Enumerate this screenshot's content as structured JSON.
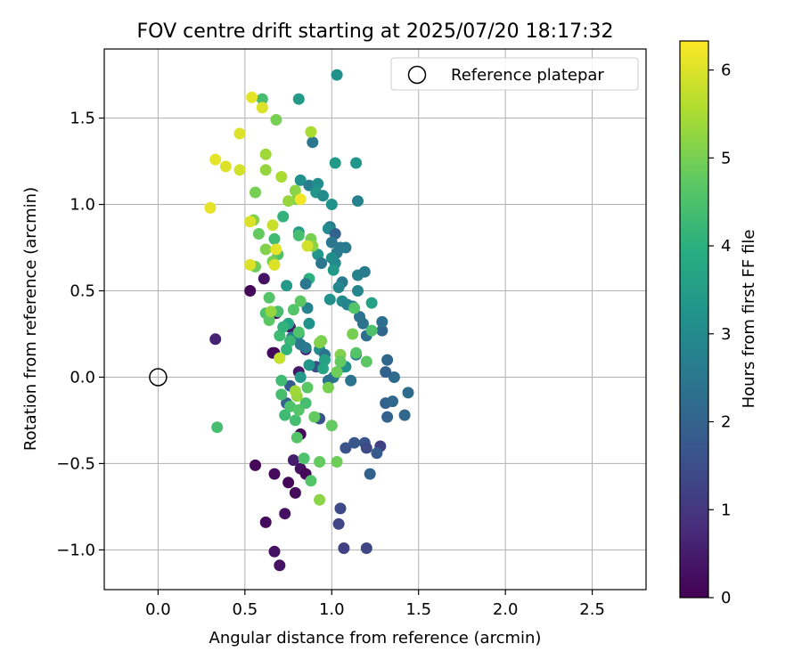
{
  "chart_data": {
    "type": "scatter",
    "title": "FOV centre drift starting at 2025/07/20 18:17:32",
    "xlabel": "Angular distance from reference (arcmin)",
    "ylabel": "Rotation from reference (arcmin)",
    "colorbar_label": "Hours from first FF file",
    "xlim": [
      -0.31,
      2.81
    ],
    "ylim": [
      -1.23,
      1.9
    ],
    "clim": [
      0,
      6.33
    ],
    "xticks": [
      0.0,
      0.5,
      1.0,
      1.5,
      2.0,
      2.5
    ],
    "xtick_labels": [
      "0.0",
      "0.5",
      "1.0",
      "1.5",
      "2.0",
      "2.5"
    ],
    "yticks": [
      -1.0,
      -0.5,
      0.0,
      0.5,
      1.0,
      1.5
    ],
    "ytick_labels": [
      "−1.0",
      "−0.5",
      "0.0",
      "0.5",
      "1.0",
      "1.5"
    ],
    "cticks": [
      0,
      1,
      2,
      3,
      4,
      5,
      6
    ],
    "ctick_labels": [
      "0",
      "1",
      "2",
      "3",
      "4",
      "5",
      "6"
    ],
    "grid": true,
    "colormap": "viridis",
    "legend": {
      "location": "top-right",
      "entries": [
        "Reference platepar"
      ]
    },
    "reference_point": {
      "x": 0.0,
      "y": 0.0
    },
    "points": [
      [
        0.33,
        0.22,
        0.6
      ],
      [
        0.53,
        0.5,
        0.1
      ],
      [
        0.61,
        0.57,
        0.3
      ],
      [
        0.68,
        0.37,
        0.2
      ],
      [
        0.66,
        0.14,
        0.3
      ],
      [
        0.67,
        0.14,
        0.1
      ],
      [
        0.76,
        0.29,
        0.4
      ],
      [
        0.85,
        0.16,
        0.5
      ],
      [
        0.81,
        0.03,
        0.4
      ],
      [
        0.82,
        -0.33,
        0.1
      ],
      [
        0.82,
        -0.53,
        0.3
      ],
      [
        0.85,
        -0.56,
        0.1
      ],
      [
        0.79,
        -0.67,
        0.2
      ],
      [
        0.75,
        -0.61,
        0.1
      ],
      [
        0.73,
        -0.79,
        0.3
      ],
      [
        0.62,
        -0.84,
        0.2
      ],
      [
        0.67,
        -1.01,
        0.3
      ],
      [
        0.7,
        -1.09,
        0.3
      ],
      [
        0.56,
        -0.51,
        0.1
      ],
      [
        0.67,
        -0.56,
        0.2
      ],
      [
        0.78,
        -0.48,
        0.5
      ],
      [
        1.05,
        -0.76,
        1.4
      ],
      [
        1.04,
        -0.85,
        1.3
      ],
      [
        1.07,
        -0.99,
        1.2
      ],
      [
        1.2,
        -0.99,
        1.3
      ],
      [
        1.08,
        -0.41,
        1.6
      ],
      [
        1.13,
        -0.38,
        1.7
      ],
      [
        1.19,
        -0.38,
        1.6
      ],
      [
        1.2,
        -0.41,
        1.4
      ],
      [
        1.28,
        -0.4,
        1.2
      ],
      [
        1.26,
        -0.44,
        1.8
      ],
      [
        1.22,
        -0.56,
        2.0
      ],
      [
        0.91,
        0.06,
        1.5
      ],
      [
        0.93,
        -0.24,
        1.6
      ],
      [
        0.76,
        -0.05,
        1.8
      ],
      [
        0.74,
        -0.15,
        2.0
      ],
      [
        1.32,
        -0.23,
        2.0
      ],
      [
        1.42,
        -0.22,
        2.1
      ],
      [
        1.31,
        -0.15,
        2.0
      ],
      [
        1.35,
        -0.14,
        2.1
      ],
      [
        1.44,
        -0.09,
        2.2
      ],
      [
        1.36,
        0.0,
        2.2
      ],
      [
        1.31,
        0.03,
        2.0
      ],
      [
        1.32,
        0.1,
        2.1
      ],
      [
        1.29,
        0.27,
        2.1
      ],
      [
        1.29,
        0.32,
        2.3
      ],
      [
        1.18,
        0.31,
        2.4
      ],
      [
        1.2,
        0.24,
        2.3
      ],
      [
        1.12,
        0.41,
        2.3
      ],
      [
        1.16,
        0.35,
        2.4
      ],
      [
        1.14,
        0.13,
        2.6
      ],
      [
        1.11,
        -0.02,
        2.4
      ],
      [
        1.07,
        0.06,
        2.7
      ],
      [
        1.01,
        0.0,
        2.6
      ],
      [
        0.98,
        -0.02,
        2.3
      ],
      [
        1.03,
        1.75,
        3.2
      ],
      [
        0.81,
        1.61,
        3.4
      ],
      [
        0.89,
        1.36,
        2.5
      ],
      [
        1.14,
        1.24,
        3.3
      ],
      [
        1.02,
        1.24,
        3.4
      ],
      [
        0.82,
        1.14,
        3.2
      ],
      [
        0.87,
        1.11,
        2.7
      ],
      [
        0.92,
        1.12,
        3.1
      ],
      [
        0.91,
        1.07,
        3.3
      ],
      [
        0.95,
        1.05,
        3.0
      ],
      [
        1.15,
        1.02,
        2.8
      ],
      [
        1.0,
        1.0,
        3.2
      ],
      [
        0.99,
        0.87,
        2.5
      ],
      [
        0.98,
        0.86,
        3.0
      ],
      [
        1.02,
        0.83,
        2.0
      ],
      [
        1.0,
        0.78,
        2.5
      ],
      [
        1.05,
        0.75,
        2.5
      ],
      [
        1.08,
        0.75,
        2.6
      ],
      [
        1.03,
        0.72,
        2.6
      ],
      [
        1.0,
        0.69,
        3.1
      ],
      [
        1.02,
        0.66,
        3.0
      ],
      [
        1.01,
        0.62,
        3.4
      ],
      [
        0.92,
        0.71,
        3.3
      ],
      [
        0.94,
        0.66,
        2.5
      ],
      [
        0.87,
        0.57,
        4.0
      ],
      [
        0.85,
        0.54,
        2.5
      ],
      [
        1.06,
        0.55,
        2.6
      ],
      [
        1.04,
        0.52,
        2.9
      ],
      [
        1.15,
        0.59,
        2.8
      ],
      [
        1.19,
        0.61,
        2.6
      ],
      [
        1.15,
        0.5,
        2.9
      ],
      [
        1.06,
        0.44,
        3.0
      ],
      [
        1.09,
        0.42,
        2.8
      ],
      [
        0.99,
        0.45,
        3.2
      ],
      [
        0.86,
        0.4,
        2.8
      ],
      [
        0.87,
        0.31,
        3.2
      ],
      [
        0.81,
        0.25,
        3.3
      ],
      [
        0.77,
        0.23,
        2.7
      ],
      [
        0.85,
        0.17,
        2.6
      ],
      [
        0.82,
        0.19,
        2.5
      ],
      [
        0.93,
        0.16,
        3.0
      ],
      [
        0.96,
        0.13,
        2.4
      ],
      [
        0.96,
        0.1,
        3.6
      ],
      [
        0.95,
        0.05,
        3.7
      ],
      [
        1.08,
        0.06,
        3.2
      ],
      [
        0.87,
        0.07,
        3.3
      ],
      [
        0.82,
        0.0,
        3.4
      ],
      [
        0.75,
        0.31,
        3.7
      ],
      [
        0.74,
        0.53,
        3.4
      ],
      [
        1.23,
        0.43,
        3.6
      ],
      [
        0.81,
        0.84,
        3.5
      ],
      [
        0.72,
        0.93,
        4.1
      ],
      [
        0.81,
        0.82,
        4.4
      ],
      [
        0.67,
        0.8,
        4.3
      ],
      [
        0.69,
        0.71,
        4.5
      ],
      [
        0.66,
        0.67,
        5.0
      ],
      [
        0.58,
        0.83,
        4.8
      ],
      [
        0.62,
        0.74,
        5.1
      ],
      [
        0.64,
        0.46,
        4.6
      ],
      [
        0.62,
        0.37,
        4.5
      ],
      [
        0.64,
        0.33,
        4.7
      ],
      [
        0.69,
        0.38,
        4.4
      ],
      [
        0.7,
        0.24,
        4.3
      ],
      [
        0.72,
        0.29,
        4.1
      ],
      [
        0.78,
        0.39,
        4.6
      ],
      [
        0.82,
        0.44,
        4.7
      ],
      [
        0.76,
        0.21,
        4.2
      ],
      [
        0.81,
        0.26,
        4.5
      ],
      [
        0.74,
        0.16,
        4.1
      ],
      [
        0.7,
        0.11,
        4.5
      ],
      [
        0.71,
        -0.02,
        4.3
      ],
      [
        0.71,
        -0.1,
        4.4
      ],
      [
        0.76,
        -0.17,
        4.5
      ],
      [
        0.73,
        -0.22,
        4.3
      ],
      [
        0.79,
        -0.25,
        4.4
      ],
      [
        0.8,
        -0.35,
        4.6
      ],
      [
        0.81,
        -0.19,
        4.6
      ],
      [
        0.85,
        -0.15,
        4.4
      ],
      [
        0.86,
        -0.06,
        4.7
      ],
      [
        0.9,
        -0.23,
        4.8
      ],
      [
        0.88,
        -0.6,
        4.6
      ],
      [
        0.84,
        -0.47,
        4.5
      ],
      [
        0.93,
        -0.49,
        4.8
      ],
      [
        1.03,
        -0.49,
        4.9
      ],
      [
        0.93,
        -0.71,
        5.2
      ],
      [
        1.0,
        -0.28,
        4.8
      ],
      [
        1.03,
        0.03,
        4.9
      ],
      [
        1.05,
        0.13,
        5.1
      ],
      [
        1.05,
        0.09,
        4.8
      ],
      [
        1.12,
        0.25,
        5.0
      ],
      [
        1.14,
        0.14,
        4.6
      ],
      [
        1.2,
        0.09,
        4.7
      ],
      [
        1.23,
        0.27,
        4.5
      ],
      [
        1.13,
        0.4,
        4.6
      ],
      [
        0.94,
        0.21,
        5.0
      ],
      [
        0.93,
        0.2,
        5.1
      ],
      [
        0.88,
        0.8,
        5.0
      ],
      [
        0.89,
        0.76,
        5.2
      ],
      [
        0.8,
        1.03,
        5.1
      ],
      [
        0.75,
        1.02,
        5.3
      ],
      [
        0.79,
        1.08,
        5.2
      ],
      [
        0.71,
        1.16,
        5.5
      ],
      [
        0.62,
        1.2,
        5.3
      ],
      [
        0.62,
        1.29,
        5.4
      ],
      [
        0.68,
        1.49,
        5.0
      ],
      [
        0.88,
        1.42,
        5.5
      ],
      [
        0.6,
        1.61,
        4.4
      ],
      [
        0.34,
        -0.29,
        4.4
      ],
      [
        0.56,
        1.07,
        5.0
      ],
      [
        0.55,
        0.91,
        5.1
      ],
      [
        0.56,
        0.64,
        4.9
      ],
      [
        0.98,
        -0.06,
        5.0
      ],
      [
        0.8,
        -0.11,
        5.3
      ],
      [
        0.79,
        -0.08,
        5.4
      ],
      [
        0.7,
        0.11,
        5.8
      ],
      [
        0.65,
        0.38,
        5.3
      ],
      [
        0.54,
        1.62,
        6.1
      ],
      [
        0.6,
        1.56,
        6.0
      ],
      [
        0.33,
        1.26,
        6.1
      ],
      [
        0.39,
        1.22,
        6.0
      ],
      [
        0.47,
        1.2,
        5.9
      ],
      [
        0.3,
        0.98,
        6.1
      ],
      [
        0.47,
        1.41,
        6.0
      ],
      [
        0.53,
        0.9,
        6.0
      ],
      [
        0.66,
        0.88,
        5.8
      ],
      [
        0.68,
        0.74,
        6.1
      ],
      [
        0.53,
        0.65,
        6.0
      ],
      [
        0.82,
        1.03,
        6.2
      ],
      [
        0.86,
        0.76,
        5.9
      ],
      [
        0.67,
        0.65,
        6.0
      ]
    ]
  }
}
